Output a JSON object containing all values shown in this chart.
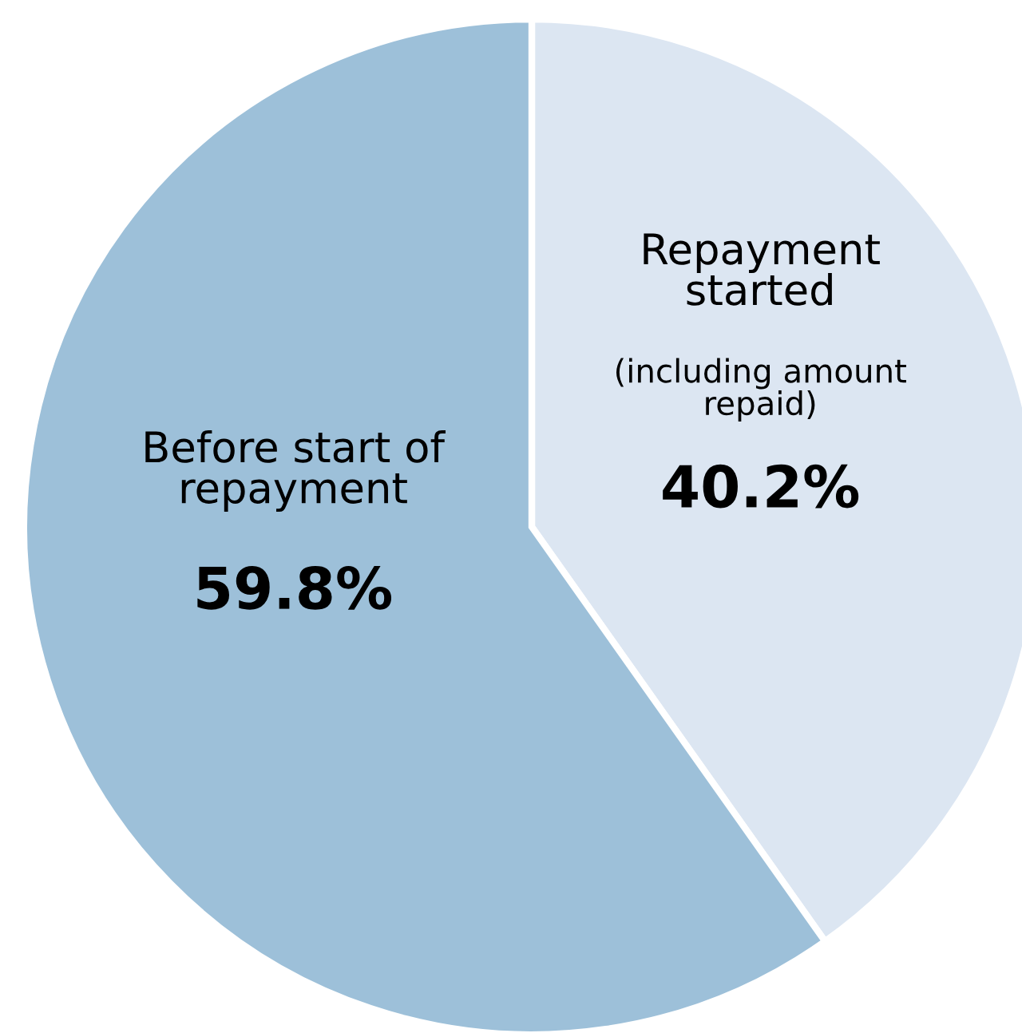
{
  "chart_data": {
    "type": "pie",
    "categories": [
      "Repayment\nstarted",
      "Before start of\nrepayment"
    ],
    "values": [
      40.2,
      59.8
    ],
    "colors": [
      "#dce6f2",
      "#9dc0d9"
    ],
    "value_labels": [
      "40.2%",
      "59.8%"
    ],
    "annotations": [
      "(including amount\nrepaid)"
    ],
    "legend": false
  }
}
